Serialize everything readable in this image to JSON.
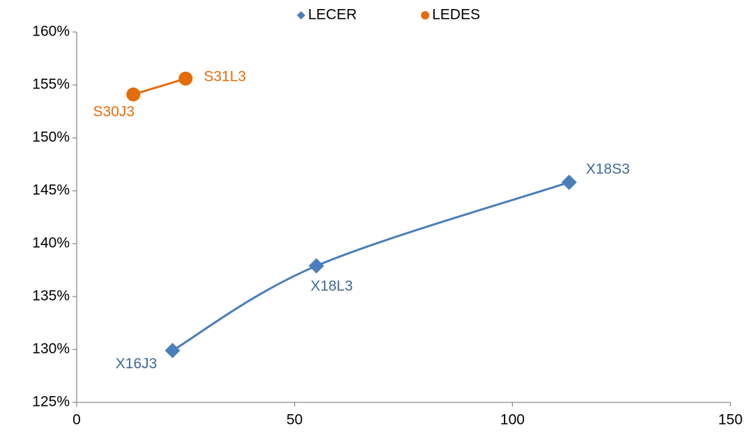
{
  "chart_data": {
    "type": "scatter",
    "series": [
      {
        "name": "LECER",
        "color": "#4a7ebb",
        "label_color": "#3f6797",
        "marker": "diamond",
        "x": [
          22,
          55,
          113
        ],
        "values": [
          129.9,
          137.9,
          145.8
        ],
        "labels": [
          "X16J3",
          "X18L3",
          "X18S3"
        ]
      },
      {
        "name": "LEDES",
        "color": "#e46c0a",
        "label_color": "#e46c0a",
        "marker": "circle",
        "x": [
          13,
          25
        ],
        "values": [
          154.1,
          155.6
        ],
        "labels": [
          "S30J3",
          "S31L3"
        ]
      }
    ],
    "smooth": true,
    "xlim": [
      0,
      150
    ],
    "xticks": [
      0,
      50,
      100,
      150
    ],
    "ylim": [
      125,
      160
    ],
    "yticks": [
      {
        "value": 125,
        "label": "125%"
      },
      {
        "value": 130,
        "label": "130%"
      },
      {
        "value": 135,
        "label": "135%"
      },
      {
        "value": 140,
        "label": "140%"
      },
      {
        "value": 145,
        "label": "145%"
      },
      {
        "value": 150,
        "label": "150%"
      },
      {
        "value": 155,
        "label": "155%"
      },
      {
        "value": 160,
        "label": "160%"
      }
    ],
    "grid": false,
    "legend": "top"
  }
}
